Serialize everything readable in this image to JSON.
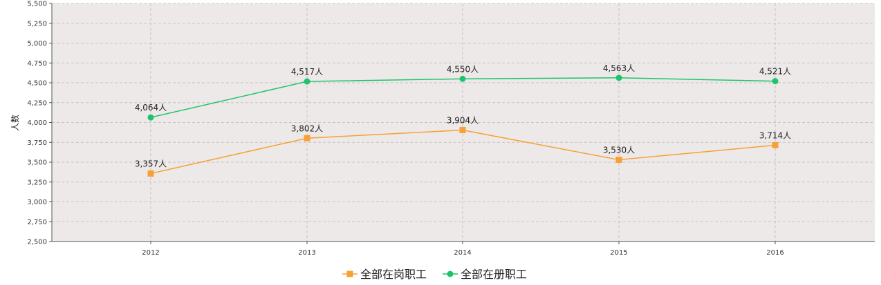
{
  "chart_data": {
    "type": "line",
    "categories": [
      "2012",
      "2013",
      "2014",
      "2015",
      "2016"
    ],
    "ylabel": "人数",
    "ylim": [
      2500,
      5500
    ],
    "yticks": [
      2500,
      2750,
      3000,
      3250,
      3500,
      3750,
      4000,
      4250,
      4500,
      4750,
      5000,
      5250,
      5500
    ],
    "ytick_labels": [
      "2,500",
      "2,750",
      "3,000",
      "3,250",
      "3,500",
      "3,750",
      "4,000",
      "4,250",
      "4,500",
      "4,750",
      "5,000",
      "5,250",
      "5,500"
    ],
    "grid": true,
    "legend_position": "bottom",
    "series": [
      {
        "name": "全部在岗职工",
        "values": [
          3357,
          3802,
          3904,
          3530,
          3714
        ],
        "labels": [
          "3,357人",
          "3,802人",
          "3,904人",
          "3,530人",
          "3,714人"
        ],
        "color": "#f7a035",
        "marker": "square"
      },
      {
        "name": "全部在册职工",
        "values": [
          4064,
          4517,
          4550,
          4563,
          4521
        ],
        "labels": [
          "4,064人",
          "4,517人",
          "4,550人",
          "4,563人",
          "4,521人"
        ],
        "color": "#1ec46b",
        "marker": "circle"
      }
    ],
    "plot_background": "#ede9e8",
    "grid_color": "#c8c4c3"
  }
}
